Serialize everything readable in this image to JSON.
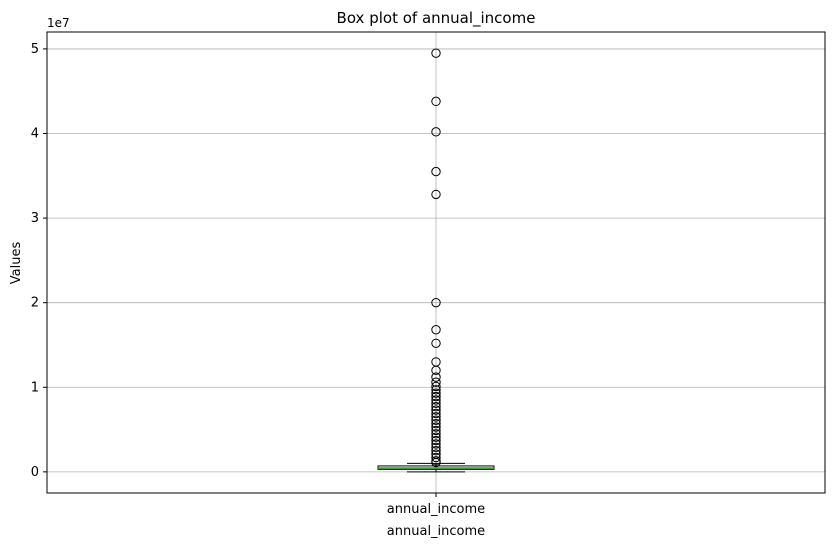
{
  "chart_data": {
    "type": "box",
    "title": "Box plot of annual_income",
    "xlabel": "annual_income",
    "ylabel": "Values",
    "offset_label": "1e7",
    "categories": [
      "annual_income"
    ],
    "ylim": [
      -0.25,
      5.2
    ],
    "y_ticks": [
      0,
      1,
      2,
      3,
      4,
      5
    ],
    "grid": true,
    "box": {
      "whisker_low": 0.0,
      "q1": 0.03,
      "median": 0.045,
      "q3": 0.07,
      "whisker_high": 0.1
    },
    "outliers": [
      4.95,
      4.38,
      4.02,
      3.55,
      3.28,
      2.0,
      1.68,
      1.52,
      1.3,
      1.2,
      1.12,
      1.06,
      1.01,
      0.97,
      0.93,
      0.89,
      0.85,
      0.81,
      0.77,
      0.73,
      0.69,
      0.65,
      0.61,
      0.57,
      0.53,
      0.49,
      0.45,
      0.41,
      0.37,
      0.33,
      0.29,
      0.25,
      0.21,
      0.17,
      0.13,
      0.11
    ],
    "colors": {
      "box": "#000000",
      "median": "#2ca02c",
      "grid": "#b0b0b0"
    }
  }
}
